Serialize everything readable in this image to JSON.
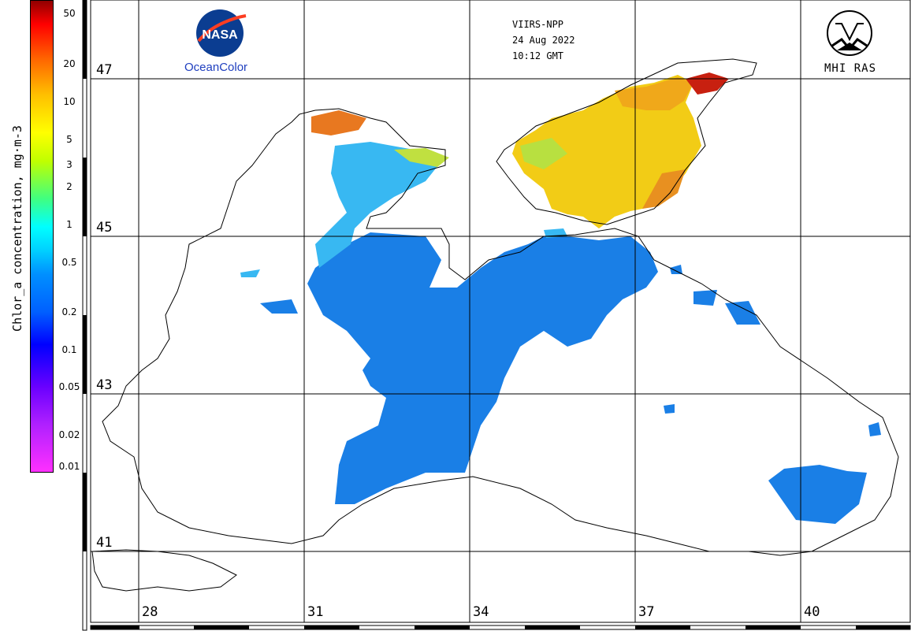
{
  "header": {
    "sensor": "VIIRS-NPP",
    "date": "24 Aug 2022",
    "time": "10:12 GMT"
  },
  "logos": {
    "nasa": {
      "emblem": "NASA",
      "caption": "OceanColor"
    },
    "mhi": {
      "caption": "MHI RAS"
    }
  },
  "colorbar": {
    "title": "Chlor_a concentration, mg·m-3",
    "ticks": [
      "50",
      "20",
      "10",
      "5",
      "3",
      "2",
      "1",
      "0.5",
      "0.2",
      "0.1",
      "0.05",
      "0.02",
      "0.01"
    ],
    "scale": "log",
    "range": [
      0.01,
      50
    ],
    "colors": [
      "#ff30ff",
      "#6a00ff",
      "#0000ff",
      "#0090ff",
      "#00ffff",
      "#40ff80",
      "#c0ff00",
      "#ffff00",
      "#ff9000",
      "#ff0000",
      "#900000"
    ]
  },
  "map": {
    "latitudes": [
      "47",
      "45",
      "43",
      "41"
    ],
    "longitudes": [
      "28",
      "31",
      "34",
      "37",
      "40"
    ],
    "grid": true,
    "land_color": "#ffffff",
    "coast_color": "#000000"
  }
}
